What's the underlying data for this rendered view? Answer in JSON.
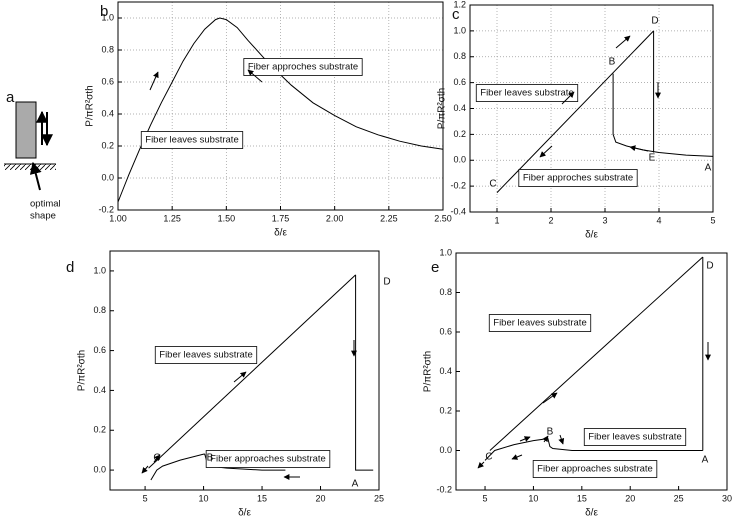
{
  "panel_a": {
    "label": "a",
    "caption_lines": [
      "optimal",
      "shape"
    ]
  },
  "chart_data": [
    {
      "type": "line",
      "label": "b",
      "xlabel": "δ/ε",
      "ylabel": "P/πR²σth",
      "grid": true,
      "xlim": [
        1.0,
        2.5
      ],
      "ylim": [
        -0.2,
        1.1
      ],
      "xticks": [
        {
          "value": 1.0,
          "label": "1.00"
        },
        {
          "value": 1.25,
          "label": "1.25"
        },
        {
          "value": 1.5,
          "label": "1.50"
        },
        {
          "value": 1.75,
          "label": "1.75"
        },
        {
          "value": 2.0,
          "label": "2.00"
        },
        {
          "value": 2.25,
          "label": "2.25"
        },
        {
          "value": 2.5,
          "label": "2.50"
        }
      ],
      "yticks": [
        {
          "value": -0.2,
          "label": "-0.2"
        },
        {
          "value": 0,
          "label": "0.0"
        },
        {
          "value": 0.2,
          "label": "0.2"
        },
        {
          "value": 0.4,
          "label": "0.4"
        },
        {
          "value": 0.6,
          "label": "0.6"
        },
        {
          "value": 0.8,
          "label": "0.8"
        },
        {
          "value": 1,
          "label": "1.0"
        }
      ],
      "series": [
        {
          "color": "#000000",
          "x": [
            1.0,
            1.05,
            1.1,
            1.15,
            1.2,
            1.25,
            1.3,
            1.35,
            1.4,
            1.45,
            1.47,
            1.5,
            1.55,
            1.6,
            1.7,
            1.8,
            1.9,
            2.0,
            2.1,
            2.2,
            2.3,
            2.4,
            2.5
          ],
          "values": [
            -0.15,
            0.02,
            0.18,
            0.33,
            0.47,
            0.6,
            0.73,
            0.84,
            0.93,
            0.99,
            1.0,
            0.99,
            0.94,
            0.86,
            0.71,
            0.58,
            0.47,
            0.39,
            0.32,
            0.27,
            0.23,
            0.2,
            0.18
          ]
        }
      ],
      "annotations": [
        "Fiber approches substrate",
        "Fiber leaves substrate"
      ]
    },
    {
      "type": "line",
      "label": "c",
      "xlabel": "δ/ε",
      "ylabel": "P/πR²σth",
      "grid": true,
      "xlim": [
        0.5,
        5
      ],
      "ylim": [
        -0.4,
        1.2
      ],
      "xticks": [
        1,
        2,
        3,
        4,
        5
      ],
      "yticks": [
        {
          "value": -0.4,
          "label": "-0.4"
        },
        {
          "value": -0.2,
          "label": "-0.2"
        },
        {
          "value": 0,
          "label": "0.0"
        },
        {
          "value": 0.2,
          "label": "0.2"
        },
        {
          "value": 0.4,
          "label": "0.4"
        },
        {
          "value": 0.6,
          "label": "0.6"
        },
        {
          "value": 0.8,
          "label": "0.8"
        },
        {
          "value": 1,
          "label": "1.0"
        },
        {
          "value": 1.2,
          "label": "1.2"
        }
      ],
      "series": [
        {
          "color": "#000000",
          "x": [
            1,
            3.9
          ],
          "values": [
            -0.25,
            1.0
          ]
        },
        {
          "color": "#000000",
          "x": [
            3.9,
            3.9
          ],
          "values": [
            1.0,
            0.06
          ]
        },
        {
          "color": "#000000",
          "x": [
            3.15,
            3.15,
            3.2,
            3.4,
            3.7,
            4.0,
            4.5,
            5
          ],
          "values": [
            0.67,
            0.2,
            0.14,
            0.11,
            0.08,
            0.06,
            0.04,
            0.03
          ]
        }
      ],
      "annotations": [
        "Fiber leaves substrate",
        "Fiber approches substrate",
        "C",
        "B",
        "D",
        "E",
        "A"
      ]
    },
    {
      "type": "line",
      "label": "d",
      "xlabel": "δ/ε",
      "ylabel": "P/πR²σth",
      "grid": false,
      "xlim": [
        2,
        25
      ],
      "ylim": [
        -0.1,
        1.1
      ],
      "xticks": [
        5,
        10,
        15,
        20,
        25
      ],
      "yticks": [
        {
          "value": 0,
          "label": "0.0"
        },
        {
          "value": 0.2,
          "label": "0.2"
        },
        {
          "value": 0.4,
          "label": "0.4"
        },
        {
          "value": 0.6,
          "label": "0.6"
        },
        {
          "value": 0.8,
          "label": "0.8"
        },
        {
          "value": 1,
          "label": "1.0"
        }
      ],
      "series": [
        {
          "color": "#000000",
          "x": [
            5.3,
            23
          ],
          "values": [
            0.01,
            0.98
          ]
        },
        {
          "color": "#000000",
          "x": [
            23,
            23,
            24.5
          ],
          "values": [
            0.98,
            0.0,
            0.0
          ]
        },
        {
          "color": "#000000",
          "x": [
            5.5,
            6,
            6.5,
            8,
            10,
            10.1,
            10.4,
            12,
            15,
            17
          ],
          "values": [
            -0.05,
            0.0,
            0.02,
            0.05,
            0.08,
            0.08,
            0.02,
            0.01,
            0.0,
            0.0
          ]
        }
      ],
      "annotations": [
        "Fiber leaves substrate",
        "Fiber approaches substrate",
        "C",
        "B",
        "D",
        "A"
      ]
    },
    {
      "type": "line",
      "label": "e",
      "xlabel": "δ/ε",
      "ylabel": "P/πR²σth",
      "grid": false,
      "xlim": [
        2,
        30
      ],
      "ylim": [
        -0.2,
        1.0
      ],
      "xticks": [
        5,
        10,
        15,
        20,
        25,
        30
      ],
      "yticks": [
        {
          "value": -0.2,
          "label": "-0.2"
        },
        {
          "value": 0,
          "label": "0.0"
        },
        {
          "value": 0.2,
          "label": "0.2"
        },
        {
          "value": 0.4,
          "label": "0.4"
        },
        {
          "value": 0.6,
          "label": "0.6"
        },
        {
          "value": 0.8,
          "label": "0.8"
        },
        {
          "value": 1,
          "label": "1.0"
        }
      ],
      "series": [
        {
          "color": "#000000",
          "x": [
            5.5,
            27.5
          ],
          "values": [
            0.0,
            0.98
          ]
        },
        {
          "color": "#000000",
          "x": [
            27.5,
            27.5
          ],
          "values": [
            0.98,
            0.0
          ]
        },
        {
          "color": "#000000",
          "x": [
            5,
            6,
            8,
            10,
            11.5,
            11.7,
            12,
            14,
            17,
            20,
            27.5
          ],
          "values": [
            -0.05,
            0.0,
            0.03,
            0.05,
            0.06,
            0.02,
            0.01,
            0.0,
            0.0,
            0.0,
            0.0
          ]
        }
      ],
      "annotations": [
        "Fiber leaves  substrate",
        "Fiber leaves  substrate",
        "Fiber approaches substrate",
        "C",
        "B",
        "D",
        "A"
      ]
    }
  ]
}
